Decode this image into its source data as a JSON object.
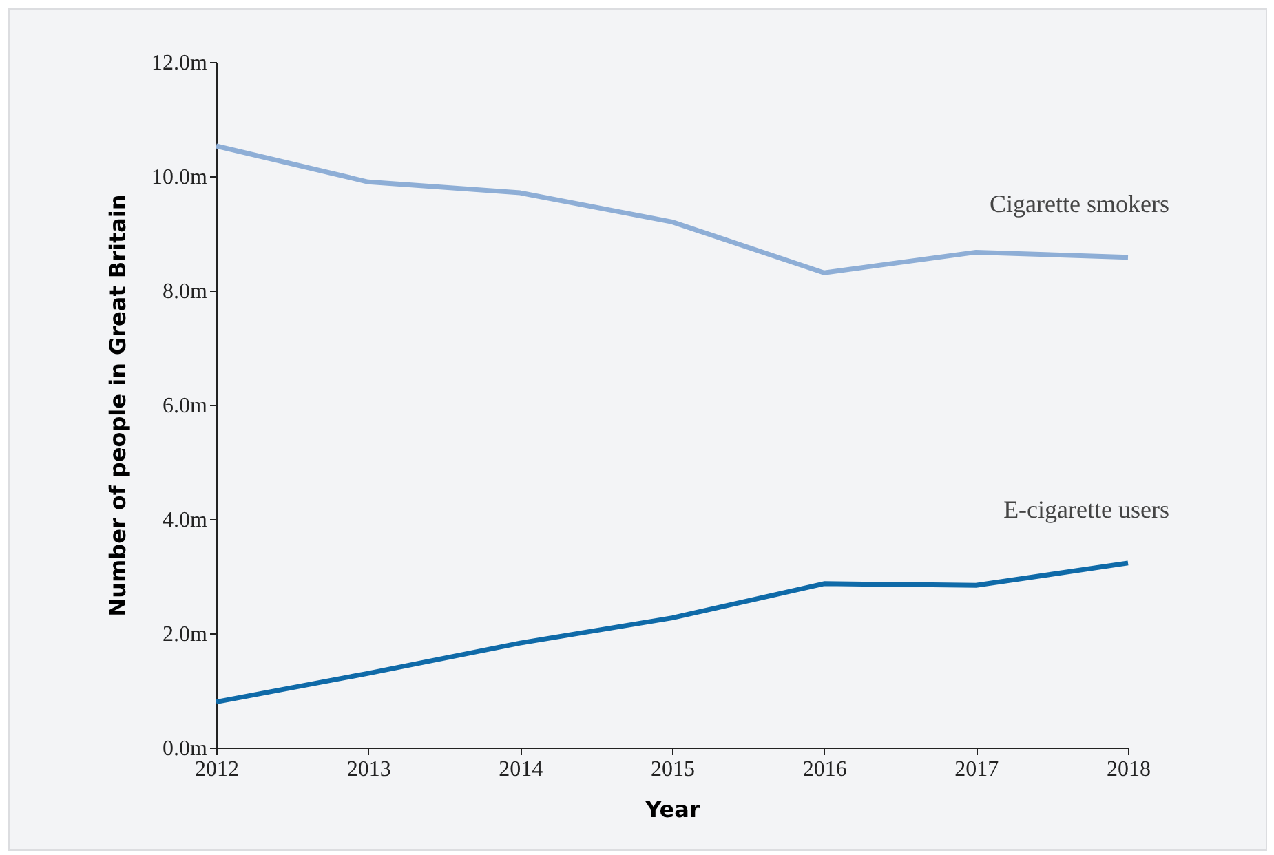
{
  "chart_data": {
    "type": "line",
    "xlabel": "Year",
    "ylabel": "Number of people in Great Britain",
    "x": [
      2012,
      2013,
      2014,
      2015,
      2016,
      2017,
      2018
    ],
    "series": [
      {
        "name": "Cigarette smokers",
        "color": "#8eaed6",
        "values": [
          10.53,
          9.9,
          9.71,
          9.2,
          8.31,
          8.67,
          8.58
        ]
      },
      {
        "name": "E-cigarette users",
        "color": "#0f6aa8",
        "values": [
          0.8,
          1.3,
          1.83,
          2.27,
          2.87,
          2.84,
          3.23
        ]
      }
    ],
    "xlim": [
      2012,
      2018
    ],
    "xticks": [
      2012,
      2013,
      2014,
      2015,
      2016,
      2017,
      2018
    ],
    "ylim": [
      0,
      12
    ],
    "yticks": [
      {
        "value": 0,
        "label": "0.0m"
      },
      {
        "value": 2,
        "label": "2.0m"
      },
      {
        "value": 4,
        "label": "4.0m"
      },
      {
        "value": 6,
        "label": "6.0m"
      },
      {
        "value": 8,
        "label": "8.0m"
      },
      {
        "value": 10,
        "label": "10.0m"
      },
      {
        "value": 12,
        "label": "12.0m"
      }
    ],
    "grid": false,
    "legend": false,
    "marker": "none",
    "line_style": "solid"
  }
}
